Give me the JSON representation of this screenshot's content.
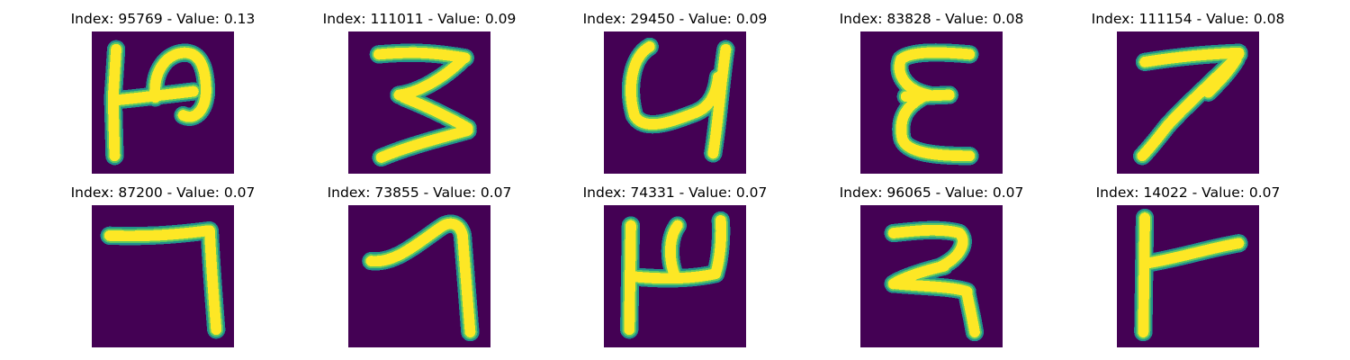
{
  "colormap": {
    "background": "#440154",
    "edge": "#21918c",
    "mid": "#5ec962",
    "stroke": "#fde725"
  },
  "panels": [
    {
      "title": "Index: 95769 - Value: 0.13",
      "icon": "digit-glyph-icon"
    },
    {
      "title": "Index: 111011 - Value: 0.09",
      "icon": "digit-glyph-icon"
    },
    {
      "title": "Index: 29450 - Value: 0.09",
      "icon": "digit-glyph-icon"
    },
    {
      "title": "Index: 83828 - Value: 0.08",
      "icon": "digit-glyph-icon"
    },
    {
      "title": "Index: 111154 - Value: 0.08",
      "icon": "digit-glyph-icon"
    },
    {
      "title": "Index: 87200 - Value: 0.07",
      "icon": "digit-glyph-icon"
    },
    {
      "title": "Index: 73855 - Value: 0.07",
      "icon": "digit-glyph-icon"
    },
    {
      "title": "Index: 74331 - Value: 0.07",
      "icon": "digit-glyph-icon"
    },
    {
      "title": "Index: 96065 - Value: 0.07",
      "icon": "digit-glyph-icon"
    },
    {
      "title": "Index: 14022 - Value: 0.07",
      "icon": "digit-glyph-icon"
    }
  ]
}
